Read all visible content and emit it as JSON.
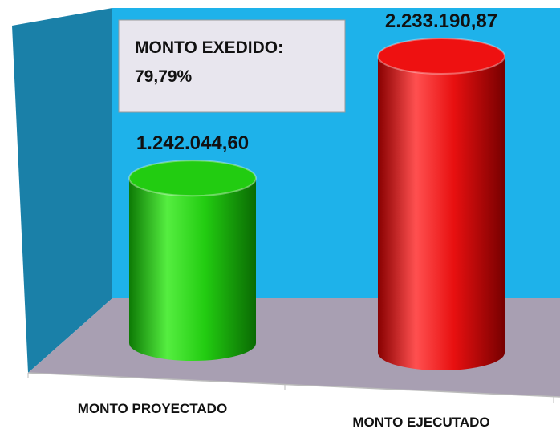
{
  "chart_data": {
    "type": "cylinder",
    "categories": [
      "MONTO PROYECTADO",
      "MONTO EJECUTADO"
    ],
    "values": [
      1242044.6,
      2233190.87
    ],
    "value_labels": [
      "1.242.044,60",
      "2.233.190,87"
    ],
    "colors": [
      "#22cc11",
      "#ee1111"
    ],
    "annotation": [
      "MONTO EXEDIDO:",
      "79,79%"
    ]
  }
}
